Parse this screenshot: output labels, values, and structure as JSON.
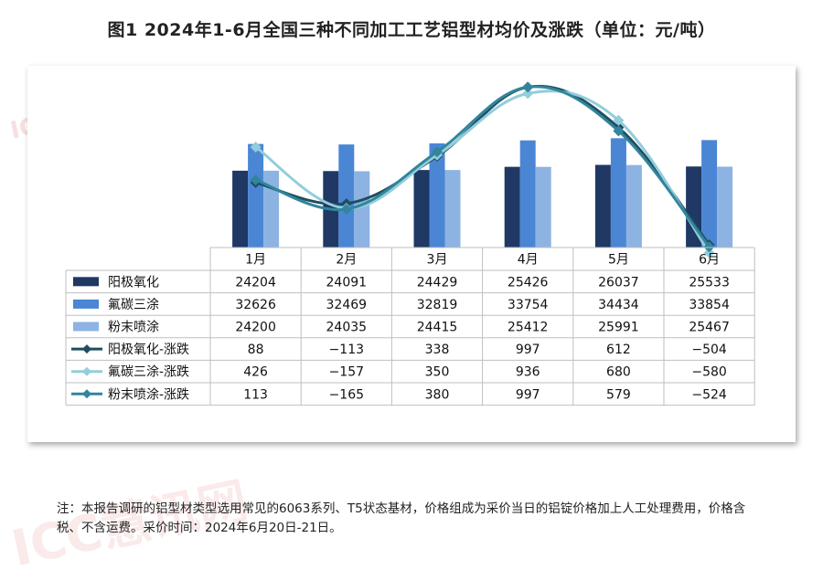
{
  "title": "图1 2024年1-6月全国三种不同加工工艺铝型材均价及涨跌（单位：元/吨）",
  "watermark": "ICC慧讯网",
  "note": "注：本报告调研的铝型材类型选用常见的6063系列、T5状态基材，价格组成为采价当日的铝锭价格加上人工处理费用，价格含税、不含运费。采价时间：2024年6月20日-21日。",
  "chart_data": {
    "type": "bar",
    "categories": [
      "1月",
      "2月",
      "3月",
      "4月",
      "5月",
      "6月"
    ],
    "series": [
      {
        "name": "阳极氧化",
        "kind": "bar",
        "color": "#1f3864",
        "values": [
          24204,
          24091,
          24429,
          25426,
          26037,
          25533
        ]
      },
      {
        "name": "氟碳三涂",
        "kind": "bar",
        "color": "#4a86d4",
        "values": [
          32626,
          32469,
          32819,
          33754,
          34434,
          33854
        ]
      },
      {
        "name": "粉末喷涂",
        "kind": "bar",
        "color": "#8db3e2",
        "values": [
          24200,
          24035,
          24415,
          25412,
          25991,
          25467
        ]
      },
      {
        "name": "阳极氧化-涨跌",
        "kind": "line",
        "color": "#1f4e5f",
        "values": [
          88,
          -113,
          338,
          997,
          612,
          -504
        ]
      },
      {
        "name": "氟碳三涂-涨跌",
        "kind": "line",
        "color": "#92cddc",
        "values": [
          426,
          -157,
          350,
          936,
          680,
          -580
        ]
      },
      {
        "name": "粉末喷涂-涨跌",
        "kind": "line",
        "color": "#31859c",
        "values": [
          113,
          -165,
          380,
          997,
          579,
          -524
        ]
      }
    ],
    "bar_axis": {
      "min": 0,
      "max": 40000
    },
    "line_axis": {
      "min": -800,
      "max": 1200
    },
    "legend": "data-table",
    "grid": false
  }
}
